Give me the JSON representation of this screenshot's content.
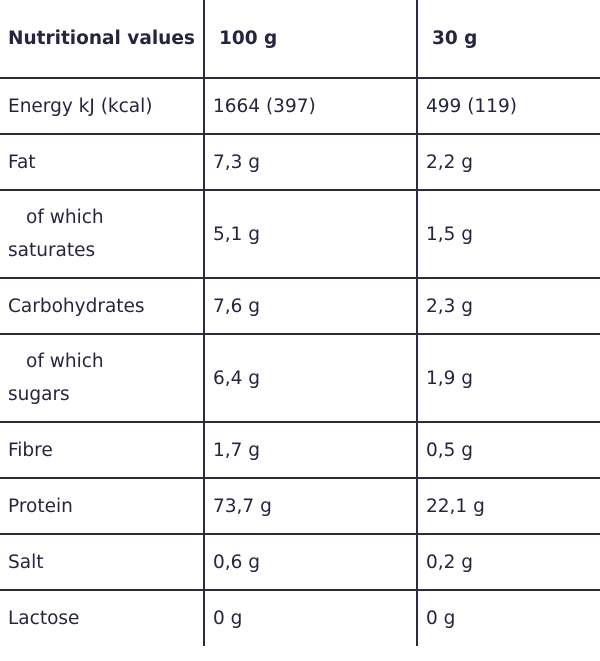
{
  "table": {
    "header": [
      "Nutritional values",
      "100 g",
      "30 g"
    ],
    "rows": [
      [
        "Energy kJ (kcal)",
        "1664 (397)",
        "499 (119)"
      ],
      [
        "Fat",
        "7,3 g",
        "2,2 g"
      ],
      [
        "of which saturates",
        "5,1 g",
        "1,5 g"
      ],
      [
        "Carbohydrates",
        "7,6 g",
        "2,3 g"
      ],
      [
        "of which sugars",
        "6,4 g",
        "1,9 g"
      ],
      [
        "Fibre",
        "1,7 g",
        "0,5 g"
      ],
      [
        "Protein",
        "73,7 g",
        "22,1 g"
      ],
      [
        "Salt",
        "0,6 g",
        "0,2 g"
      ],
      [
        "Lactose",
        "0 g",
        "0 g"
      ]
    ]
  }
}
